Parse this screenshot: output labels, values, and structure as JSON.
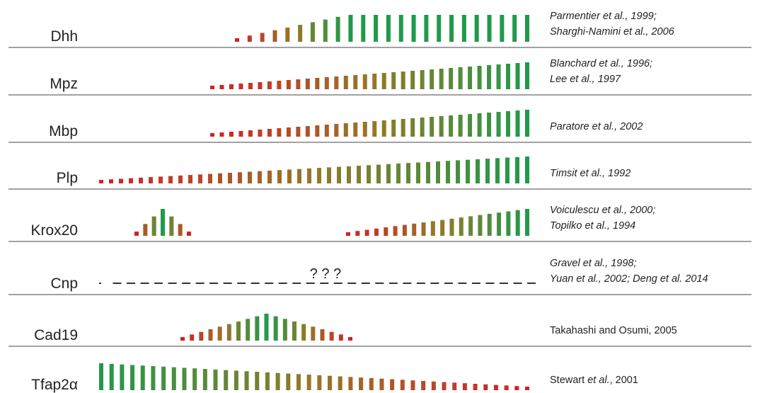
{
  "colors": {
    "start": "#d41f26",
    "end": "#1f9a4b",
    "text": "#222222",
    "separator": "#6b6b6b"
  },
  "rows": [
    {
      "gene": "Dhh",
      "refs": [
        [
          {
            "t": "Parmentier et al., 1999;",
            "i": true
          }
        ],
        [
          {
            "t": "Sharghi-Namini et al., 2006",
            "i": true
          }
        ]
      ],
      "segments": [
        {
          "type": "ramp",
          "from": 335,
          "to": 745,
          "count": 24,
          "hStart": 5,
          "hEnd": 38,
          "plateauFrom": 0.38
        }
      ]
    },
    {
      "gene": "Mpz",
      "refs": [
        [
          {
            "t": "Blanchard et al., 1996;",
            "i": true
          }
        ],
        [
          {
            "t": "Lee et al., 1997",
            "i": true
          }
        ]
      ],
      "segments": [
        {
          "type": "ramp",
          "from": 300,
          "to": 745,
          "count": 34,
          "hStart": 5,
          "hEnd": 38
        }
      ]
    },
    {
      "gene": "Mbp",
      "refs": [
        [
          {
            "t": "Paratore et al., 2002",
            "i": true
          }
        ]
      ],
      "segments": [
        {
          "type": "ramp",
          "from": 300,
          "to": 745,
          "count": 34,
          "hStart": 5,
          "hEnd": 38
        }
      ]
    },
    {
      "gene": "Plp",
      "refs": [
        [
          {
            "t": "Timsit et al., 1992",
            "i": true
          }
        ]
      ],
      "segments": [
        {
          "type": "ramp",
          "from": 143,
          "to": 745,
          "count": 44,
          "hStart": 5,
          "hEnd": 38
        }
      ]
    },
    {
      "gene": "Krox20",
      "refs": [
        [
          {
            "t": "Voiculescu et al., 2000;",
            "i": true
          }
        ],
        [
          {
            "t": "Topilko et al., 1994",
            "i": true
          }
        ]
      ],
      "segments": [
        {
          "type": "peak",
          "from": 193,
          "to": 267,
          "count": 7,
          "hMin": 6,
          "hMax": 38
        },
        {
          "type": "ramp",
          "from": 492,
          "to": 745,
          "count": 20,
          "hStart": 5,
          "hEnd": 38
        }
      ]
    },
    {
      "gene": "Cnp",
      "refs": [
        [
          {
            "t": "Gravel et al., 1998;",
            "i": true
          }
        ],
        [
          {
            "t": "Yuan et al., 2002; Deng et al. 2014",
            "i": true
          }
        ]
      ],
      "segments": [
        {
          "type": "dash",
          "from": 140,
          "to": 745,
          "count": 32
        }
      ],
      "annotation": "? ? ?"
    },
    {
      "gene": "Cad19",
      "refs": [
        [
          {
            "t": "Takahashi and Osumi, 2005",
            "i": false
          }
        ]
      ],
      "segments": [
        {
          "type": "peak",
          "from": 258,
          "to": 495,
          "count": 19,
          "hMin": 5,
          "hMax": 38
        }
      ]
    },
    {
      "gene": "Tfap2α",
      "refs": [
        [
          {
            "t": "Stewart ",
            "i": false
          },
          {
            "t": "et al.",
            "i": true
          },
          {
            "t": ", 2001",
            "i": false
          }
        ]
      ],
      "segments": [
        {
          "type": "ramp",
          "from": 143,
          "to": 745,
          "count": 42,
          "hStart": 38,
          "hEnd": 5
        }
      ]
    }
  ]
}
